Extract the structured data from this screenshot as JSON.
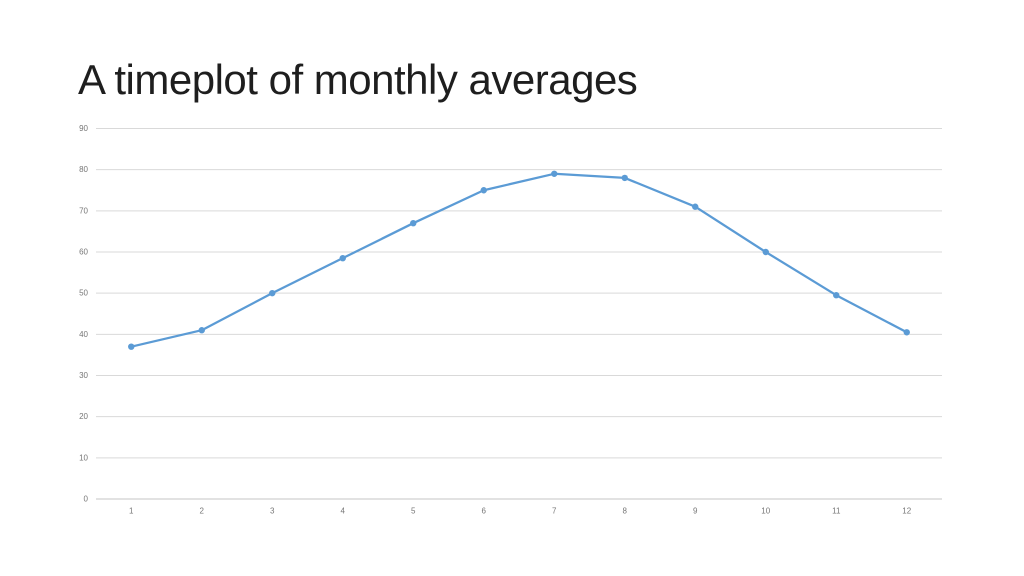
{
  "slide": {
    "title": "A timeplot of monthly averages"
  },
  "chart_data": {
    "type": "line",
    "title": "A timeplot of monthly averages",
    "categories": [
      "1",
      "2",
      "3",
      "4",
      "5",
      "6",
      "7",
      "8",
      "9",
      "10",
      "11",
      "12"
    ],
    "values": [
      37,
      41,
      50,
      58.5,
      67,
      75,
      79,
      78,
      71,
      60,
      49.5,
      40.5
    ],
    "series_name": "monthly average",
    "xlabel": "",
    "ylabel": "",
    "ylim": [
      0,
      90
    ],
    "yticks": [
      0,
      10,
      20,
      30,
      40,
      50,
      60,
      70,
      80,
      90
    ],
    "grid": true,
    "legend": false,
    "line_color": "#5B9BD5",
    "marker_color": "#5B9BD5",
    "gridline_color": "#D9D9D9",
    "axis_line_color": "#C6C6C6",
    "axis_label_color": "#767676"
  }
}
